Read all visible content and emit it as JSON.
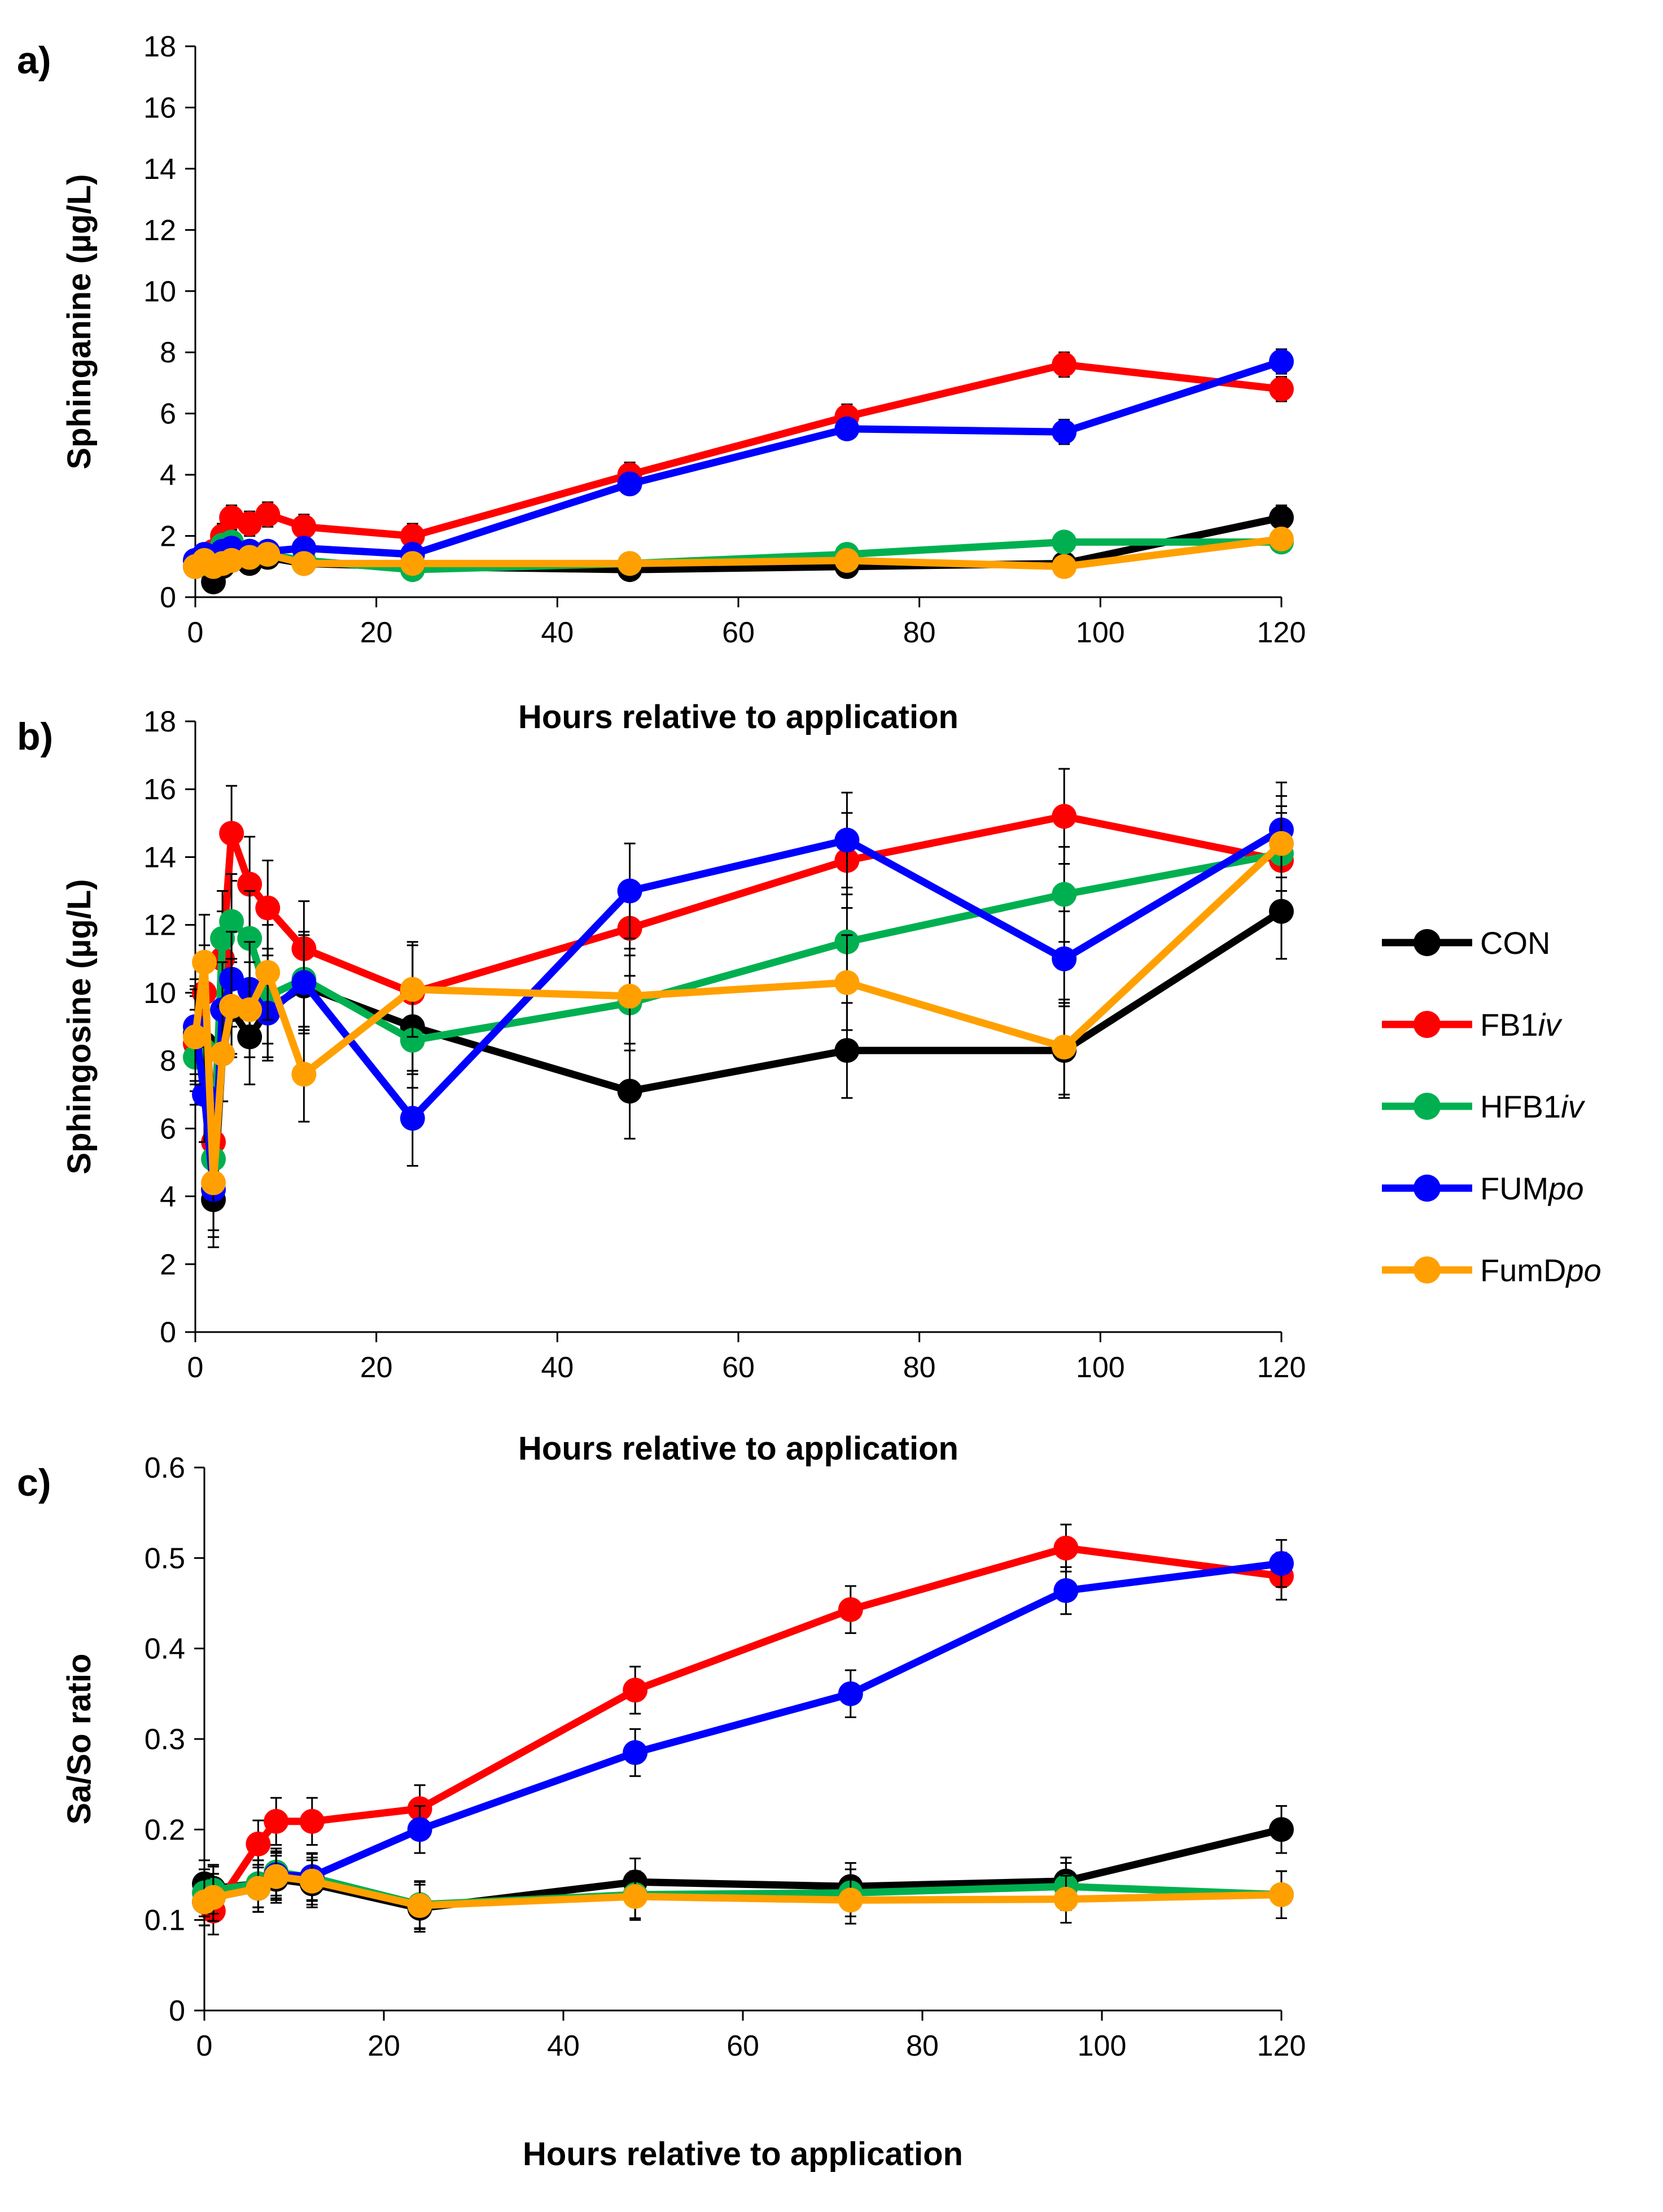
{
  "chart_data": [
    {
      "type": "line",
      "panel_label": "a)",
      "title": "",
      "xlabel": "Hours relative to application",
      "ylabel": "Sphinganine (µg/L)",
      "xlim": [
        0,
        120
      ],
      "ylim": [
        0,
        18
      ],
      "xticks": [
        0,
        20,
        40,
        60,
        80,
        100,
        120
      ],
      "yticks": [
        0,
        2,
        4,
        6,
        8,
        10,
        12,
        14,
        16,
        18
      ],
      "x": [
        0,
        1,
        2,
        3,
        4,
        6,
        8,
        12,
        24,
        48,
        72,
        96,
        120
      ],
      "series": [
        {
          "name": "CON",
          "color": "#000000",
          "values": [
            1.0,
            1.1,
            0.5,
            1.0,
            1.2,
            1.1,
            1.3,
            1.1,
            1.0,
            0.9,
            1.0,
            1.1,
            2.6
          ],
          "errors": [
            0.3,
            0.3,
            0.3,
            0.3,
            0.3,
            0.3,
            0.3,
            0.3,
            0.3,
            0.3,
            0.3,
            0.4,
            0.4
          ]
        },
        {
          "name": "FB1iv",
          "color": "#ff0000",
          "values": [
            1.2,
            1.3,
            1.5,
            2.0,
            2.6,
            2.4,
            2.7,
            2.3,
            2.0,
            4.0,
            5.9,
            7.6,
            6.8
          ],
          "errors": [
            0.3,
            0.3,
            0.3,
            0.4,
            0.4,
            0.4,
            0.4,
            0.4,
            0.4,
            0.4,
            0.4,
            0.4,
            0.4
          ]
        },
        {
          "name": "HFB1iv",
          "color": "#00b050",
          "values": [
            1.0,
            1.1,
            1.3,
            1.7,
            1.8,
            1.5,
            1.4,
            1.2,
            0.9,
            1.1,
            1.4,
            1.8,
            1.8
          ],
          "errors": [
            0.3,
            0.3,
            0.3,
            0.3,
            0.3,
            0.3,
            0.3,
            0.3,
            0.3,
            0.3,
            0.3,
            0.3,
            0.3
          ]
        },
        {
          "name": "FUMpo",
          "color": "#0000ff",
          "values": [
            1.2,
            1.4,
            1.3,
            1.5,
            1.6,
            1.5,
            1.5,
            1.6,
            1.4,
            3.7,
            5.5,
            5.4,
            7.7
          ],
          "errors": [
            0.3,
            0.3,
            0.3,
            0.3,
            0.3,
            0.3,
            0.3,
            0.3,
            0.3,
            0.3,
            0.3,
            0.4,
            0.4
          ]
        },
        {
          "name": "FumDpo",
          "color": "#ffa000",
          "values": [
            1.0,
            1.2,
            1.0,
            1.1,
            1.2,
            1.3,
            1.4,
            1.1,
            1.1,
            1.1,
            1.2,
            1.0,
            1.9
          ],
          "errors": [
            0.3,
            0.3,
            0.3,
            0.3,
            0.3,
            0.3,
            0.3,
            0.3,
            0.3,
            0.3,
            0.3,
            0.3,
            0.3
          ]
        }
      ]
    },
    {
      "type": "line",
      "panel_label": "b)",
      "title": "",
      "xlabel": "Hours relative to application",
      "ylabel": "Sphingosine (µg/L)",
      "xlim": [
        0,
        120
      ],
      "ylim": [
        0,
        18
      ],
      "xticks": [
        0,
        20,
        40,
        60,
        80,
        100,
        120
      ],
      "yticks": [
        0,
        2,
        4,
        6,
        8,
        10,
        12,
        14,
        16,
        18
      ],
      "x": [
        0,
        1,
        2,
        3,
        4,
        6,
        8,
        12,
        24,
        48,
        72,
        96,
        120
      ],
      "series": [
        {
          "name": "CON",
          "color": "#000000",
          "values": [
            8.8,
            8.5,
            3.9,
            8.2,
            9.5,
            8.7,
            9.5,
            10.2,
            9.0,
            7.1,
            8.3,
            8.3,
            12.4
          ],
          "errors": [
            1.4,
            1.4,
            1.4,
            1.4,
            1.4,
            1.4,
            1.4,
            1.4,
            1.4,
            1.4,
            1.4,
            1.4,
            1.4
          ]
        },
        {
          "name": "FB1iv",
          "color": "#ff0000",
          "values": [
            8.5,
            10.0,
            5.6,
            11.0,
            14.7,
            13.2,
            12.5,
            11.3,
            10.0,
            11.9,
            13.9,
            15.2,
            13.9
          ],
          "errors": [
            1.4,
            1.4,
            1.4,
            1.4,
            1.4,
            1.4,
            1.4,
            1.4,
            1.4,
            1.4,
            1.4,
            1.4,
            1.4
          ]
        },
        {
          "name": "HFB1iv",
          "color": "#00b050",
          "values": [
            8.1,
            8.3,
            5.1,
            11.6,
            12.1,
            11.6,
            9.9,
            10.4,
            8.6,
            9.7,
            11.5,
            12.9,
            14.1
          ],
          "errors": [
            1.4,
            1.4,
            1.4,
            1.4,
            1.4,
            1.4,
            1.4,
            1.4,
            1.4,
            1.4,
            1.4,
            1.4,
            1.4
          ]
        },
        {
          "name": "FUMpo",
          "color": "#0000ff",
          "values": [
            9.0,
            7.0,
            4.2,
            9.5,
            10.4,
            10.1,
            9.4,
            10.3,
            6.3,
            13.0,
            14.5,
            11.0,
            14.8
          ],
          "errors": [
            1.4,
            1.4,
            1.4,
            1.4,
            1.4,
            1.4,
            1.4,
            1.4,
            1.4,
            1.4,
            1.4,
            1.4,
            1.4
          ]
        },
        {
          "name": "FumDpo",
          "color": "#ffa000",
          "values": [
            8.7,
            10.9,
            4.4,
            8.2,
            9.6,
            9.5,
            10.6,
            7.6,
            10.1,
            9.9,
            10.3,
            8.4,
            14.4
          ],
          "errors": [
            1.4,
            1.4,
            1.4,
            1.4,
            1.4,
            1.4,
            1.4,
            1.4,
            1.4,
            1.4,
            1.4,
            1.4,
            1.4
          ]
        }
      ]
    },
    {
      "type": "line",
      "panel_label": "c)",
      "title": "",
      "xlabel": "Hours relative to application",
      "ylabel": "Sa/So ratio",
      "xlim": [
        0,
        120
      ],
      "ylim": [
        0,
        0.6
      ],
      "xticks": [
        0,
        20,
        40,
        60,
        80,
        100,
        120
      ],
      "yticks": [
        0,
        0.1,
        0.2,
        0.3,
        0.4,
        0.5,
        0.6
      ],
      "x": [
        0,
        1,
        6,
        8,
        12,
        24,
        48,
        72,
        96,
        120
      ],
      "series": [
        {
          "name": "CON",
          "color": "#000000",
          "values": [
            0.14,
            0.135,
            0.14,
            0.145,
            0.14,
            0.113,
            0.142,
            0.137,
            0.143,
            0.2
          ],
          "errors": [
            0.026,
            0.026,
            0.026,
            0.026,
            0.026,
            0.026,
            0.026,
            0.026,
            0.026,
            0.026
          ]
        },
        {
          "name": "FB1iv",
          "color": "#ff0000",
          "values": [
            0.12,
            0.11,
            0.184,
            0.209,
            0.209,
            0.223,
            0.354,
            0.443,
            0.511,
            0.48
          ],
          "errors": [
            0.026,
            0.026,
            0.026,
            0.026,
            0.026,
            0.026,
            0.026,
            0.026,
            0.026,
            0.026
          ]
        },
        {
          "name": "HFB1iv",
          "color": "#00b050",
          "values": [
            0.13,
            0.133,
            0.14,
            0.153,
            0.147,
            0.117,
            0.128,
            0.13,
            0.137,
            0.128
          ],
          "errors": [
            0.026,
            0.026,
            0.026,
            0.026,
            0.026,
            0.026,
            0.026,
            0.026,
            0.026,
            0.026
          ]
        },
        {
          "name": "FUMpo",
          "color": "#0000ff",
          "values": [
            0.12,
            0.125,
            0.135,
            0.15,
            0.148,
            0.2,
            0.285,
            0.35,
            0.464,
            0.494
          ],
          "errors": [
            0.026,
            0.026,
            0.026,
            0.026,
            0.026,
            0.026,
            0.026,
            0.026,
            0.026,
            0.026
          ]
        },
        {
          "name": "FumDpo",
          "color": "#ffa000",
          "values": [
            0.12,
            0.125,
            0.135,
            0.148,
            0.143,
            0.116,
            0.126,
            0.122,
            0.123,
            0.128
          ],
          "errors": [
            0.026,
            0.026,
            0.026,
            0.026,
            0.026,
            0.026,
            0.026,
            0.026,
            0.026,
            0.026
          ]
        }
      ]
    }
  ],
  "legend": {
    "placement": "right-middle",
    "entries": [
      {
        "base": "CON",
        "italic": "",
        "color": "#000000"
      },
      {
        "base": "FB1",
        "italic": "iv",
        "color": "#ff0000"
      },
      {
        "base": "HFB1",
        "italic": "iv",
        "color": "#00b050"
      },
      {
        "base": "FUM",
        "italic": "po",
        "color": "#0000ff"
      },
      {
        "base": "FumD",
        "italic": "po",
        "color": "#ffa000"
      }
    ]
  }
}
